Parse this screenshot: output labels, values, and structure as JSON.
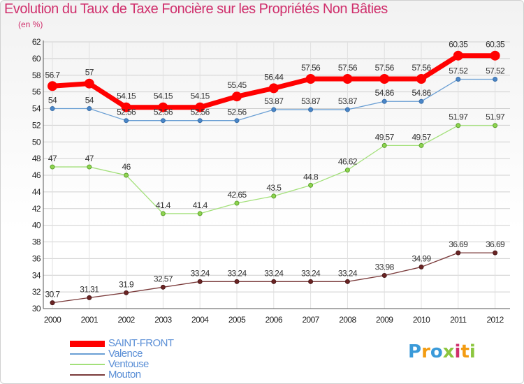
{
  "chart_data": {
    "type": "line",
    "title": "Evolution du Taux de Taxe Foncière sur les Propriétés Non Bâties",
    "subtitle": "(en %)",
    "x": [
      "2000",
      "2001",
      "2002",
      "2003",
      "2004",
      "2005",
      "2006",
      "2007",
      "2008",
      "2009",
      "2010",
      "2011",
      "2012"
    ],
    "ylim": [
      30,
      62
    ],
    "yticks": [
      30,
      32,
      34,
      36,
      38,
      40,
      42,
      44,
      46,
      48,
      50,
      52,
      54,
      56,
      58,
      60,
      62
    ],
    "grid": true,
    "legend_position": "bottom-left",
    "series": [
      {
        "name": "SAINT-FRONT",
        "color": "#ff0000",
        "values": [
          56.7,
          57,
          54.15,
          54.15,
          54.15,
          55.45,
          56.44,
          57.56,
          57.56,
          57.56,
          57.56,
          60.35,
          60.35
        ],
        "labels": [
          "56.7",
          "57",
          "54.15",
          "54.15",
          "54.15",
          "55.45",
          "56.44",
          "57.56",
          "57.56",
          "57.56",
          "57.56",
          "60.35",
          "60.35"
        ]
      },
      {
        "name": "Valence",
        "color": "#6a9fd4",
        "values": [
          54,
          54,
          52.56,
          52.56,
          52.56,
          52.56,
          53.87,
          53.87,
          53.87,
          54.86,
          54.86,
          57.52,
          57.52
        ],
        "labels": [
          "54",
          "54",
          "52.56",
          "52.56",
          "52.56",
          "52.56",
          "53.87",
          "53.87",
          "53.87",
          "54.86",
          "54.86",
          "57.52",
          "57.52"
        ]
      },
      {
        "name": "Ventouse",
        "color": "#a3e07a",
        "values": [
          47,
          47,
          46,
          41.4,
          41.4,
          42.65,
          43.5,
          44.8,
          46.62,
          49.57,
          49.57,
          51.97,
          51.97
        ],
        "labels": [
          "47",
          "47",
          "46",
          "41.4",
          "41.4",
          "42.65",
          "43.5",
          "44.8",
          "46.62",
          "49.57",
          "49.57",
          "51.97",
          "51.97"
        ]
      },
      {
        "name": "Mouton",
        "color": "#7a3a3a",
        "values": [
          30.7,
          31.31,
          31.9,
          32.57,
          33.24,
          33.24,
          33.24,
          33.24,
          33.24,
          33.98,
          34.99,
          36.69,
          36.69
        ],
        "labels": [
          "30.7",
          "31.31",
          "31.9",
          "32.57",
          "33.24",
          "33.24",
          "33.24",
          "33.24",
          "33.24",
          "33.98",
          "34.99",
          "36.69",
          "36.69"
        ]
      }
    ]
  },
  "logo": {
    "parts": [
      "P",
      "r",
      "o",
      "x",
      "i",
      "t",
      "i"
    ]
  }
}
